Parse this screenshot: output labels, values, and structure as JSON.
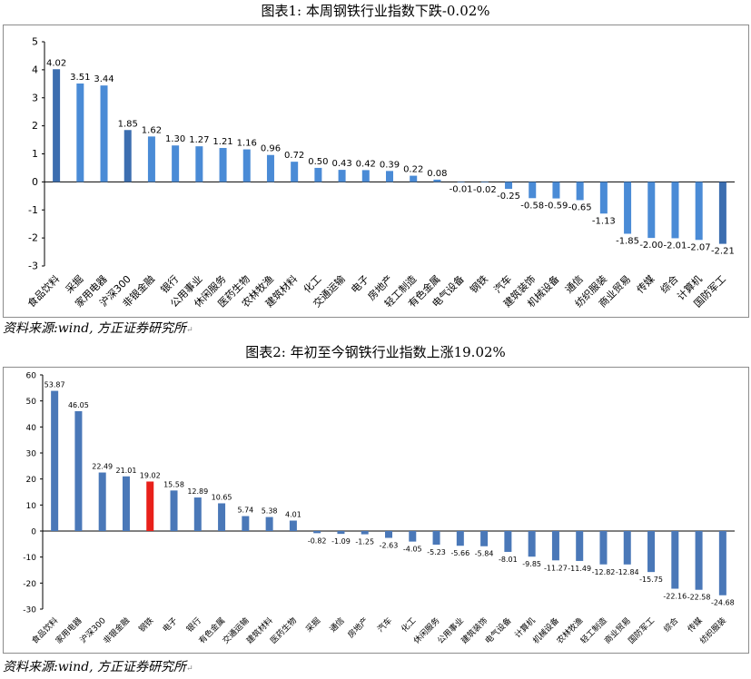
{
  "page": {
    "return_mark": "↵"
  },
  "chart_data": [
    {
      "type": "bar",
      "title": "图表1:  本周钢铁行业指数下跌-0.02%",
      "source": "资料来源:wind, 方正证券研究所",
      "ylim": [
        -3,
        5
      ],
      "yticks": [
        5,
        4,
        3,
        2,
        1,
        0,
        -1,
        -2,
        -3
      ],
      "categories": [
        "食品饮料",
        "采掘",
        "家用电器",
        "沪深300",
        "非银金融",
        "银行",
        "公用事业",
        "休闲服务",
        "医药生物",
        "农林牧渔",
        "建筑材料",
        "化工",
        "交通运输",
        "电子",
        "房地产",
        "轻工制造",
        "有色金属",
        "电气设备",
        "钢铁",
        "汽车",
        "建筑装饰",
        "机械设备",
        "通信",
        "纺织服装",
        "商业贸易",
        "传媒",
        "综合",
        "计算机",
        "国防军工"
      ],
      "values": [
        4.02,
        3.51,
        3.44,
        1.85,
        1.62,
        1.3,
        1.27,
        1.21,
        1.16,
        0.96,
        0.72,
        0.5,
        0.43,
        0.42,
        0.39,
        0.22,
        0.08,
        -0.01,
        -0.02,
        -0.25,
        -0.58,
        -0.59,
        -0.65,
        -1.13,
        -1.85,
        -2.0,
        -2.01,
        -2.07,
        -2.21
      ],
      "labels": [
        "4.02",
        "3.51",
        "3.44",
        "1.85",
        "1.62",
        "1.30",
        "1.27",
        "1.21",
        "1.16",
        "0.96",
        "0.72",
        "0.50",
        "0.43",
        "0.42",
        "0.39",
        "0.22",
        "0.08",
        "-0.01",
        "-0.02",
        "-0.25",
        "-0.58",
        "-0.59",
        "-0.65",
        "-1.13",
        "-1.85",
        "-2.00",
        "-2.01",
        "-2.07",
        "-2.21"
      ],
      "colors": {
        "default": "#4a8bd6",
        "highlight": "#3c6eb0"
      },
      "highlight_indices": [
        0,
        3,
        28
      ]
    },
    {
      "type": "bar",
      "title": "图表2:  年初至今钢铁行业指数上涨19.02%",
      "source": "资料来源:wind, 方正证券研究所",
      "ylim": [
        -30,
        60
      ],
      "yticks": [
        60,
        50,
        40,
        30,
        20,
        10,
        0,
        -10,
        -20,
        -30
      ],
      "categories": [
        "食品饮料",
        "家用电器",
        "沪深300",
        "非银金融",
        "钢铁",
        "电子",
        "银行",
        "有色金属",
        "交通运输",
        "建筑材料",
        "医药生物",
        "采掘",
        "通信",
        "房地产",
        "汽车",
        "化工",
        "休闲服务",
        "公用事业",
        "建筑装饰",
        "电气设备",
        "计算机",
        "机械设备",
        "农林牧渔",
        "轻工制造",
        "商业贸易",
        "国防军工",
        "综合",
        "传媒",
        "纺织服装"
      ],
      "values": [
        53.87,
        46.05,
        22.49,
        21.01,
        19.02,
        15.58,
        12.89,
        10.65,
        5.74,
        5.38,
        4.01,
        -0.82,
        -1.09,
        -1.25,
        -2.63,
        -4.05,
        -5.23,
        -5.66,
        -5.84,
        -8.01,
        -9.85,
        -11.27,
        -11.49,
        -12.82,
        -12.84,
        -15.75,
        -22.16,
        -22.58,
        -24.68
      ],
      "labels": [
        "53.87",
        "46.05",
        "22.49",
        "21.01",
        "19.02",
        "15.58",
        "12.89",
        "10.65",
        "5.74",
        "5.38",
        "4.01",
        "-0.82",
        "-1.09",
        "-1.25",
        "-2.63",
        "-4.05",
        "-5.23",
        "-5.66",
        "-5.84",
        "-8.01",
        "-9.85",
        "-11.27",
        "-11.49",
        "-12.82",
        "-12.84",
        "-15.75",
        "-22.16",
        "-22.58",
        "-24.68"
      ],
      "colors": {
        "default": "#4a78b8",
        "highlight": "#e8201a"
      },
      "highlight_indices": [
        4
      ]
    }
  ]
}
